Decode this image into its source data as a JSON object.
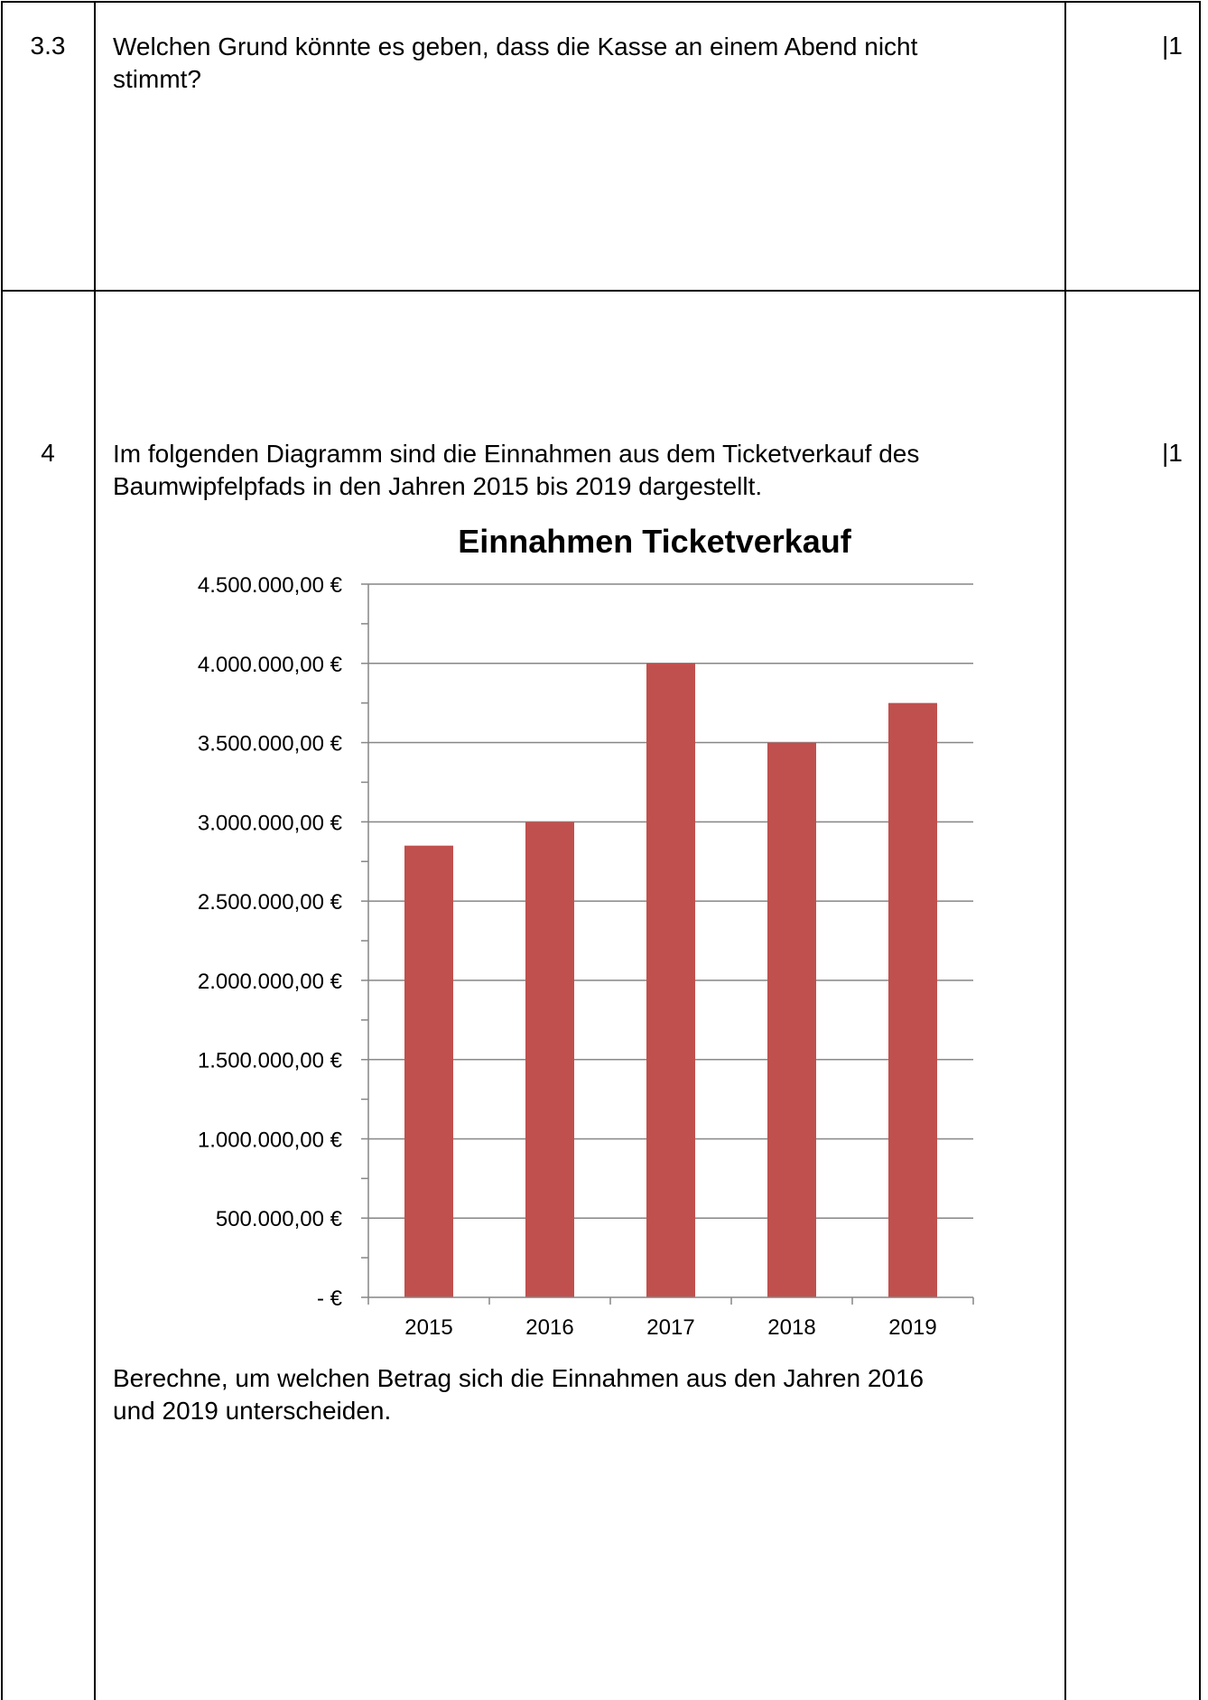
{
  "rows": [
    {
      "number": "3.3",
      "lines": [
        "Welchen Grund könnte es geben, dass die Kasse an einem Abend nicht",
        "stimmt?"
      ],
      "points": "|1"
    },
    {
      "number": "4",
      "lines": [
        "Im folgenden Diagramm sind die Einnahmen aus dem Ticketverkauf des",
        "Baumwipfelpfads in den Jahren 2015 bis 2019 dargestellt."
      ],
      "points": "|1",
      "task_lines": [
        "Berechne, um welchen Betrag sich die Einnahmen aus den Jahren 2016",
        "und 2019 unterscheiden."
      ]
    }
  ],
  "chart_data": {
    "type": "bar",
    "title": "Einnahmen Ticketverkauf",
    "categories": [
      "2015",
      "2016",
      "2017",
      "2018",
      "2019"
    ],
    "values": [
      2850000,
      3000000,
      4000000,
      3500000,
      3750000
    ],
    "ylim": [
      0,
      4500000
    ],
    "y_ticks": [
      {
        "value": 4500000,
        "label": "4.500.000,00 €"
      },
      {
        "value": 4000000,
        "label": "4.000.000,00 €"
      },
      {
        "value": 3500000,
        "label": "3.500.000,00 €"
      },
      {
        "value": 3000000,
        "label": "3.000.000,00 €"
      },
      {
        "value": 2500000,
        "label": "2.500.000,00 €"
      },
      {
        "value": 2000000,
        "label": "2.000.000,00 €"
      },
      {
        "value": 1500000,
        "label": "1.500.000,00 €"
      },
      {
        "value": 1000000,
        "label": "1.000.000,00 €"
      },
      {
        "value": 500000,
        "label": "500.000,00 €"
      },
      {
        "value": 0,
        "label": "-   €"
      }
    ],
    "grid": true,
    "bar_color": "#c0504d",
    "grid_color": "#868686"
  }
}
